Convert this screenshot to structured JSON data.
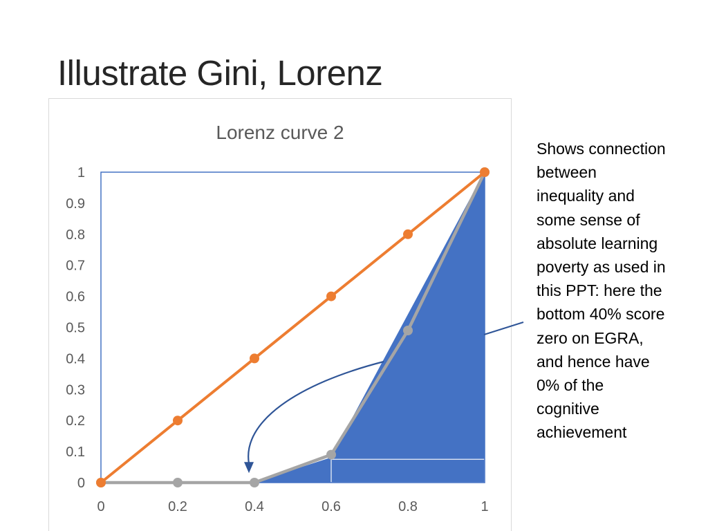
{
  "slide": {
    "title": "Illustrate Gini, Lorenz",
    "note": "Shows connection\nbetween\ninequality and\nsome sense of\nabsolute learning\npoverty as used in\nthis PPT: here the\nbottom 40% score\nzero on EGRA,\nand hence have\n0% of the\ncognitive\nachievement"
  },
  "colors": {
    "equality": "#ED7D31",
    "lorenz": "#A5A5A5",
    "fill": "#4472C4",
    "frame": "#4472C4",
    "arrow": "#2F5597",
    "axis_text": "#595959"
  },
  "chart_data": {
    "type": "line",
    "title": "Lorenz curve 2",
    "xlabel": "",
    "ylabel": "",
    "xlim": [
      0,
      1
    ],
    "ylim": [
      0,
      1
    ],
    "x_ticks": [
      0,
      0.2,
      0.4,
      0.6,
      0.8,
      1
    ],
    "x_tick_labels": [
      "0",
      "0.2",
      "0.4",
      "0.6",
      "0.8",
      "1"
    ],
    "y_ticks": [
      0,
      0.1,
      0.2,
      0.3,
      0.4,
      0.5,
      0.6,
      0.7,
      0.8,
      0.9,
      1
    ],
    "y_tick_labels": [
      "0",
      "0.1",
      "0.2",
      "0.3",
      "0.4",
      "0.5",
      "0.6",
      "0.7",
      "0.8",
      "0.9",
      "1"
    ],
    "grid": false,
    "legend": "none",
    "series": [
      {
        "key": "equality",
        "x": [
          0,
          0.2,
          0.4,
          0.6,
          0.8,
          1
        ],
        "y": [
          0,
          0.2,
          0.4,
          0.6,
          0.8,
          1
        ]
      },
      {
        "key": "lorenz",
        "x": [
          0,
          0.2,
          0.4,
          0.6,
          0.8,
          1
        ],
        "y": [
          0,
          0,
          0,
          0.09,
          0.49,
          1
        ]
      }
    ],
    "annotations": {
      "shaded_region": [
        [
          0.4,
          0
        ],
        [
          0.6,
          0.08
        ],
        [
          1,
          1
        ],
        [
          1,
          0
        ]
      ],
      "inner_box": [
        [
          0.6,
          0
        ],
        [
          1,
          0.075
        ]
      ],
      "bounding_box": [
        [
          0,
          0
        ],
        [
          1,
          1
        ]
      ],
      "arrow_target": [
        0.4,
        0.035
      ]
    }
  }
}
